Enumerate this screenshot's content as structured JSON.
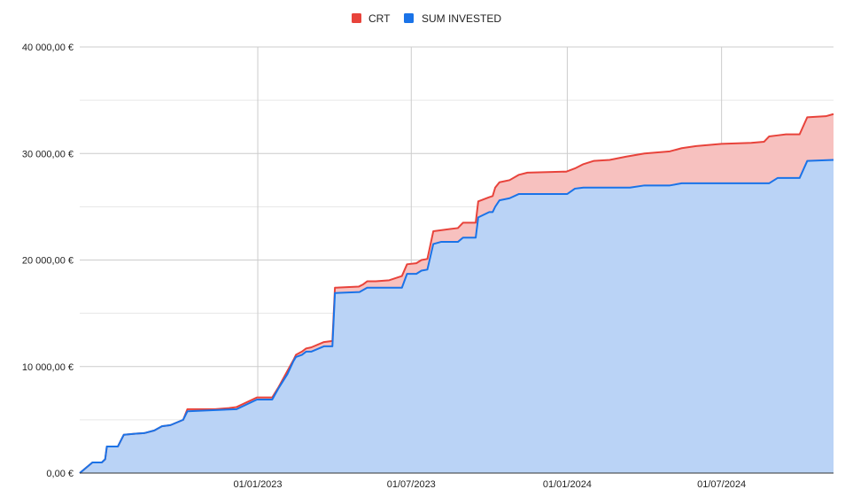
{
  "chart_data": {
    "type": "area",
    "series": [
      {
        "name": "CRT",
        "line_color": "#e8433b",
        "fill_color": "#f7c1bf",
        "points": [
          [
            "2022-06-05",
            0
          ],
          [
            "2022-06-20",
            1000
          ],
          [
            "2022-07-01",
            1000
          ],
          [
            "2022-07-05",
            1300
          ],
          [
            "2022-07-07",
            2500
          ],
          [
            "2022-07-20",
            2500
          ],
          [
            "2022-07-27",
            3600
          ],
          [
            "2022-08-10",
            3700
          ],
          [
            "2022-08-20",
            3750
          ],
          [
            "2022-09-01",
            4000
          ],
          [
            "2022-09-10",
            4400
          ],
          [
            "2022-09-20",
            4500
          ],
          [
            "2022-10-05",
            5000
          ],
          [
            "2022-10-10",
            6000
          ],
          [
            "2022-11-01",
            6000
          ],
          [
            "2022-11-12",
            6000
          ],
          [
            "2022-11-28",
            6100
          ],
          [
            "2022-12-07",
            6200
          ],
          [
            "2022-12-31",
            7100
          ],
          [
            "2023-01-18",
            7100
          ],
          [
            "2023-01-25",
            8000
          ],
          [
            "2023-02-05",
            9600
          ],
          [
            "2023-02-12",
            10600
          ],
          [
            "2023-02-15",
            11100
          ],
          [
            "2023-02-22",
            11400
          ],
          [
            "2023-02-27",
            11700
          ],
          [
            "2023-03-05",
            11800
          ],
          [
            "2023-03-20",
            12300
          ],
          [
            "2023-03-30",
            12400
          ],
          [
            "2023-04-02",
            17400
          ],
          [
            "2023-04-30",
            17500
          ],
          [
            "2023-05-05",
            17700
          ],
          [
            "2023-05-10",
            18000
          ],
          [
            "2023-05-20",
            18000
          ],
          [
            "2023-06-05",
            18100
          ],
          [
            "2023-06-20",
            18500
          ],
          [
            "2023-06-26",
            19600
          ],
          [
            "2023-07-07",
            19700
          ],
          [
            "2023-07-13",
            20000
          ],
          [
            "2023-07-20",
            20100
          ],
          [
            "2023-07-27",
            22700
          ],
          [
            "2023-08-05",
            22800
          ],
          [
            "2023-08-25",
            23000
          ],
          [
            "2023-08-31",
            23500
          ],
          [
            "2023-09-15",
            23500
          ],
          [
            "2023-09-18",
            25500
          ],
          [
            "2023-10-01",
            25900
          ],
          [
            "2023-10-05",
            26000
          ],
          [
            "2023-10-08",
            26800
          ],
          [
            "2023-10-13",
            27300
          ],
          [
            "2023-10-25",
            27500
          ],
          [
            "2023-11-05",
            28000
          ],
          [
            "2023-11-15",
            28200
          ],
          [
            "2023-12-31",
            28300
          ],
          [
            "2024-01-10",
            28600
          ],
          [
            "2024-01-20",
            29000
          ],
          [
            "2024-02-01",
            29300
          ],
          [
            "2024-02-20",
            29400
          ],
          [
            "2024-03-10",
            29700
          ],
          [
            "2024-04-01",
            30000
          ],
          [
            "2024-05-01",
            30200
          ],
          [
            "2024-05-15",
            30500
          ],
          [
            "2024-06-01",
            30700
          ],
          [
            "2024-07-01",
            30900
          ],
          [
            "2024-08-05",
            31000
          ],
          [
            "2024-08-20",
            31100
          ],
          [
            "2024-08-26",
            31600
          ],
          [
            "2024-09-05",
            31700
          ],
          [
            "2024-09-15",
            31800
          ],
          [
            "2024-10-01",
            31800
          ],
          [
            "2024-10-10",
            33400
          ],
          [
            "2024-11-01",
            33500
          ],
          [
            "2024-11-10",
            33700
          ]
        ]
      },
      {
        "name": "SUM INVESTED",
        "line_color": "#1a73e8",
        "fill_color": "#bad3f6",
        "points": [
          [
            "2022-06-05",
            0
          ],
          [
            "2022-06-20",
            1000
          ],
          [
            "2022-07-01",
            1000
          ],
          [
            "2022-07-05",
            1300
          ],
          [
            "2022-07-07",
            2500
          ],
          [
            "2022-07-20",
            2500
          ],
          [
            "2022-07-27",
            3600
          ],
          [
            "2022-08-10",
            3700
          ],
          [
            "2022-08-20",
            3750
          ],
          [
            "2022-09-01",
            4000
          ],
          [
            "2022-09-10",
            4400
          ],
          [
            "2022-09-20",
            4500
          ],
          [
            "2022-10-05",
            5000
          ],
          [
            "2022-10-10",
            5800
          ],
          [
            "2022-12-07",
            6000
          ],
          [
            "2022-12-31",
            6900
          ],
          [
            "2023-01-18",
            6900
          ],
          [
            "2023-01-25",
            7900
          ],
          [
            "2023-02-05",
            9300
          ],
          [
            "2023-02-12",
            10500
          ],
          [
            "2023-02-15",
            10900
          ],
          [
            "2023-02-22",
            11100
          ],
          [
            "2023-02-27",
            11400
          ],
          [
            "2023-03-05",
            11400
          ],
          [
            "2023-03-20",
            11900
          ],
          [
            "2023-03-30",
            11900
          ],
          [
            "2023-04-02",
            16900
          ],
          [
            "2023-05-01",
            17000
          ],
          [
            "2023-05-10",
            17400
          ],
          [
            "2023-06-20",
            17400
          ],
          [
            "2023-06-26",
            18700
          ],
          [
            "2023-07-07",
            18700
          ],
          [
            "2023-07-13",
            19000
          ],
          [
            "2023-07-20",
            19100
          ],
          [
            "2023-07-27",
            21500
          ],
          [
            "2023-08-05",
            21700
          ],
          [
            "2023-08-25",
            21700
          ],
          [
            "2023-08-31",
            22100
          ],
          [
            "2023-09-15",
            22100
          ],
          [
            "2023-09-18",
            24000
          ],
          [
            "2023-10-01",
            24500
          ],
          [
            "2023-10-05",
            24500
          ],
          [
            "2023-10-08",
            25000
          ],
          [
            "2023-10-13",
            25600
          ],
          [
            "2023-10-25",
            25800
          ],
          [
            "2023-11-05",
            26200
          ],
          [
            "2023-11-15",
            26200
          ],
          [
            "2024-01-01",
            26200
          ],
          [
            "2024-01-10",
            26700
          ],
          [
            "2024-01-20",
            26800
          ],
          [
            "2024-03-15",
            26800
          ],
          [
            "2024-04-01",
            27000
          ],
          [
            "2024-05-01",
            27000
          ],
          [
            "2024-05-15",
            27200
          ],
          [
            "2024-07-01",
            27200
          ],
          [
            "2024-08-26",
            27200
          ],
          [
            "2024-09-05",
            27700
          ],
          [
            "2024-10-01",
            27700
          ],
          [
            "2024-10-10",
            29300
          ],
          [
            "2024-11-10",
            29400
          ]
        ]
      }
    ],
    "x_range": [
      "2022-06-05",
      "2024-11-10"
    ],
    "x_ticks": [
      {
        "date": "2023-01-01",
        "label": "01/01/2023"
      },
      {
        "date": "2023-07-01",
        "label": "01/07/2023"
      },
      {
        "date": "2024-01-01",
        "label": "01/01/2024"
      },
      {
        "date": "2024-07-01",
        "label": "01/07/2024"
      }
    ],
    "ylim": [
      0,
      40000
    ],
    "y_ticks": [
      {
        "value": 0,
        "label": "0,00 €"
      },
      {
        "value": 10000,
        "label": "10 000,00 €"
      },
      {
        "value": 20000,
        "label": "20 000,00 €"
      },
      {
        "value": 30000,
        "label": "30 000,00 €"
      },
      {
        "value": 40000,
        "label": "40 000,00 €"
      }
    ],
    "y_minor_gridlines": [
      5000,
      15000,
      25000,
      35000
    ],
    "grid": true,
    "legend_position": "top-center",
    "title": "",
    "xlabel": "",
    "ylabel": ""
  }
}
